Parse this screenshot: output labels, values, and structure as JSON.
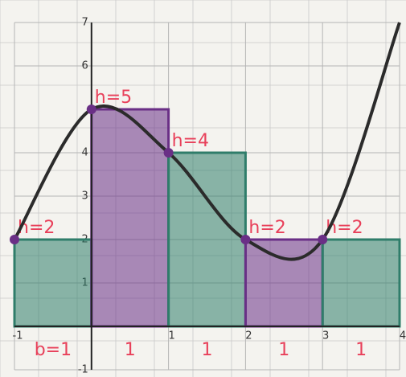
{
  "chart_data": {
    "type": "histogram",
    "bins": [
      -1,
      0,
      1,
      2,
      3,
      4
    ],
    "values": [
      2,
      5,
      4,
      2,
      2
    ],
    "value_labels": [
      "h=2",
      "h=5",
      "h=4",
      "h=2",
      "h=2"
    ],
    "width_labels": [
      "b=1",
      "1",
      "1",
      "1",
      "1"
    ],
    "colors": [
      "#2f7d6a",
      "#6a2f86",
      "#2f7d6a",
      "#6a2f86",
      "#2f7d6a"
    ],
    "curve": {
      "x": [
        -1,
        0,
        1,
        2,
        3,
        4
      ],
      "y": [
        2,
        5,
        4,
        2,
        2,
        7
      ],
      "color": "#2b2b2b"
    },
    "xlim": [
      -1,
      4
    ],
    "ylim": [
      -1,
      7
    ],
    "xticks": [
      -1,
      1,
      2,
      3,
      4
    ],
    "yticks": [
      -1,
      1,
      2,
      3,
      4,
      6,
      7
    ],
    "grid": true
  }
}
